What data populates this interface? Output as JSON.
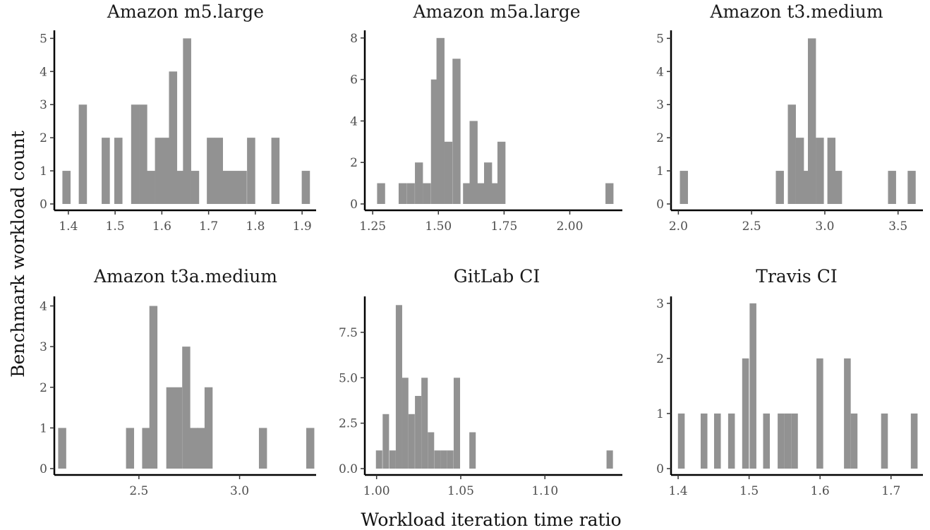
{
  "figure": {
    "xlabel": "Workload iteration time ratio",
    "ylabel": "Benchmark workload count"
  },
  "colors": {
    "bar": "#929292",
    "axis": "#000000",
    "tick_text": "#4d4d4d",
    "title_text": "#1a1a1a"
  },
  "chart_data": [
    {
      "type": "bar",
      "title": "Amazon m5.large",
      "xlim": [
        1.37,
        1.93
      ],
      "ylim": [
        0,
        5.2
      ],
      "xticks": [
        1.4,
        1.5,
        1.6,
        1.7,
        1.8,
        1.9
      ],
      "xtick_labels": [
        "1.4",
        "1.5",
        "1.6",
        "1.7",
        "1.8",
        "1.9"
      ],
      "yticks": [
        0,
        1,
        2,
        3,
        4,
        5
      ],
      "ytick_labels": [
        "0",
        "1",
        "2",
        "3",
        "4",
        "5"
      ],
      "bin_width": 0.0175,
      "bins": [
        {
          "x": 1.396,
          "count": 1
        },
        {
          "x": 1.431,
          "count": 3
        },
        {
          "x": 1.48,
          "count": 2
        },
        {
          "x": 1.507,
          "count": 2
        },
        {
          "x": 1.543,
          "count": 3
        },
        {
          "x": 1.56,
          "count": 3
        },
        {
          "x": 1.577,
          "count": 1
        },
        {
          "x": 1.594,
          "count": 2
        },
        {
          "x": 1.611,
          "count": 2
        },
        {
          "x": 1.624,
          "count": 4
        },
        {
          "x": 1.641,
          "count": 1
        },
        {
          "x": 1.654,
          "count": 5
        },
        {
          "x": 1.671,
          "count": 1
        },
        {
          "x": 1.705,
          "count": 2
        },
        {
          "x": 1.722,
          "count": 2
        },
        {
          "x": 1.739,
          "count": 1
        },
        {
          "x": 1.756,
          "count": 1
        },
        {
          "x": 1.773,
          "count": 1
        },
        {
          "x": 1.791,
          "count": 2
        },
        {
          "x": 1.843,
          "count": 2
        },
        {
          "x": 1.908,
          "count": 1
        }
      ]
    },
    {
      "type": "bar",
      "title": "Amazon m5a.large",
      "xlim": [
        1.22,
        2.2
      ],
      "ylim": [
        0,
        8.3
      ],
      "xticks": [
        1.25,
        1.5,
        1.75,
        2.0
      ],
      "xtick_labels": [
        "1.25",
        "1.50",
        "1.75",
        "2.00"
      ],
      "yticks": [
        0,
        2,
        4,
        6,
        8
      ],
      "ytick_labels": [
        "0",
        "2",
        "4",
        "6",
        "8"
      ],
      "bin_width": 0.0305,
      "bins": [
        {
          "x": 1.282,
          "count": 1
        },
        {
          "x": 1.364,
          "count": 1
        },
        {
          "x": 1.395,
          "count": 1
        },
        {
          "x": 1.426,
          "count": 2
        },
        {
          "x": 1.456,
          "count": 1
        },
        {
          "x": 1.487,
          "count": 6
        },
        {
          "x": 1.508,
          "count": 8
        },
        {
          "x": 1.538,
          "count": 3
        },
        {
          "x": 1.569,
          "count": 7
        },
        {
          "x": 1.609,
          "count": 1
        },
        {
          "x": 1.634,
          "count": 4
        },
        {
          "x": 1.659,
          "count": 1
        },
        {
          "x": 1.689,
          "count": 2
        },
        {
          "x": 1.715,
          "count": 1
        },
        {
          "x": 1.74,
          "count": 3
        },
        {
          "x": 2.151,
          "count": 1
        }
      ]
    },
    {
      "type": "bar",
      "title": "Amazon t3.medium",
      "xlim": [
        1.95,
        3.67
      ],
      "ylim": [
        0,
        5.2
      ],
      "xticks": [
        2.0,
        2.5,
        3.0,
        3.5
      ],
      "xtick_labels": [
        "2.0",
        "2.5",
        "3.0",
        "3.5"
      ],
      "yticks": [
        0,
        1,
        2,
        3,
        4,
        5
      ],
      "ytick_labels": [
        "0",
        "1",
        "2",
        "3",
        "4",
        "5"
      ],
      "bin_width": 0.055,
      "bins": [
        {
          "x": 2.038,
          "count": 1
        },
        {
          "x": 2.693,
          "count": 1
        },
        {
          "x": 2.775,
          "count": 3
        },
        {
          "x": 2.83,
          "count": 2
        },
        {
          "x": 2.868,
          "count": 1
        },
        {
          "x": 2.912,
          "count": 5
        },
        {
          "x": 2.966,
          "count": 2
        },
        {
          "x": 3.045,
          "count": 2
        },
        {
          "x": 3.09,
          "count": 1
        },
        {
          "x": 3.459,
          "count": 1
        },
        {
          "x": 3.593,
          "count": 1
        }
      ]
    },
    {
      "type": "bar",
      "title": "Amazon t3a.medium",
      "xlim": [
        2.08,
        3.38
      ],
      "ylim": [
        0,
        4.2
      ],
      "xticks": [
        2.5,
        3.0
      ],
      "xtick_labels": [
        "2.5",
        "3.0"
      ],
      "yticks": [
        0,
        1,
        2,
        3,
        4
      ],
      "ytick_labels": [
        "0",
        "1",
        "2",
        "3",
        "4"
      ],
      "bin_width": 0.04,
      "bins": [
        {
          "x": 2.119,
          "count": 1
        },
        {
          "x": 2.456,
          "count": 1
        },
        {
          "x": 2.536,
          "count": 1
        },
        {
          "x": 2.572,
          "count": 4
        },
        {
          "x": 2.656,
          "count": 2
        },
        {
          "x": 2.695,
          "count": 2
        },
        {
          "x": 2.735,
          "count": 3
        },
        {
          "x": 2.774,
          "count": 1
        },
        {
          "x": 2.81,
          "count": 1
        },
        {
          "x": 2.846,
          "count": 2
        },
        {
          "x": 3.116,
          "count": 1
        },
        {
          "x": 3.351,
          "count": 1
        }
      ]
    },
    {
      "type": "bar",
      "title": "GitLab CI",
      "xlim": [
        0.993,
        1.146
      ],
      "ylim": [
        0,
        9.4
      ],
      "xticks": [
        1.0,
        1.05,
        1.1
      ],
      "xtick_labels": [
        "1.00",
        "1.05",
        "1.10"
      ],
      "yticks": [
        0,
        2.5,
        5.0,
        7.5
      ],
      "ytick_labels": [
        "0.0",
        "2.5",
        "5.0",
        "7.5"
      ],
      "bin_width": 0.0038,
      "bins": [
        {
          "x": 1.0015,
          "count": 1
        },
        {
          "x": 1.0055,
          "count": 3
        },
        {
          "x": 1.0095,
          "count": 1
        },
        {
          "x": 1.0133,
          "count": 9
        },
        {
          "x": 1.017,
          "count": 5
        },
        {
          "x": 1.0208,
          "count": 3
        },
        {
          "x": 1.0247,
          "count": 4
        },
        {
          "x": 1.0285,
          "count": 5
        },
        {
          "x": 1.0323,
          "count": 2
        },
        {
          "x": 1.0362,
          "count": 1
        },
        {
          "x": 1.04,
          "count": 1
        },
        {
          "x": 1.0438,
          "count": 1
        },
        {
          "x": 1.0477,
          "count": 5
        },
        {
          "x": 1.057,
          "count": 2
        },
        {
          "x": 1.1385,
          "count": 1
        }
      ]
    },
    {
      "type": "bar",
      "title": "Travis CI",
      "xlim": [
        1.39,
        1.745
      ],
      "ylim": [
        0,
        3.1
      ],
      "xticks": [
        1.4,
        1.5,
        1.6,
        1.7
      ],
      "xtick_labels": [
        "1.4",
        "1.5",
        "1.6",
        "1.7"
      ],
      "yticks": [
        0,
        1,
        2,
        3
      ],
      "ytick_labels": [
        "0",
        "1",
        "2",
        "3"
      ],
      "bin_width": 0.0095,
      "bins": [
        {
          "x": 1.4045,
          "count": 1
        },
        {
          "x": 1.4365,
          "count": 1
        },
        {
          "x": 1.4554,
          "count": 1
        },
        {
          "x": 1.4752,
          "count": 1
        },
        {
          "x": 1.495,
          "count": 2
        },
        {
          "x": 1.5055,
          "count": 3
        },
        {
          "x": 1.5245,
          "count": 1
        },
        {
          "x": 1.545,
          "count": 1
        },
        {
          "x": 1.5545,
          "count": 1
        },
        {
          "x": 1.564,
          "count": 1
        },
        {
          "x": 1.5997,
          "count": 2
        },
        {
          "x": 1.6385,
          "count": 2
        },
        {
          "x": 1.648,
          "count": 1
        },
        {
          "x": 1.6908,
          "count": 1
        },
        {
          "x": 1.7327,
          "count": 1
        }
      ]
    }
  ]
}
